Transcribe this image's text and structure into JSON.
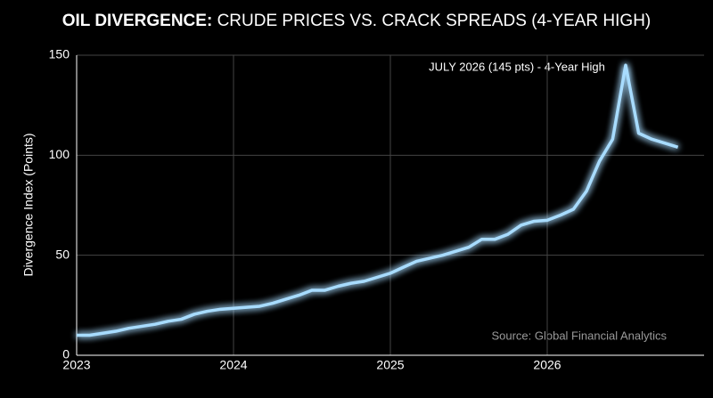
{
  "chart_data": {
    "type": "line",
    "title": [
      "OIL DIVERGENCE:",
      "CRUDE PRICES VS. CRACK SPREADS (4-YEAR HIGH)"
    ],
    "y_label": "Divergence Index (Points)",
    "annotation": "JULY 2026 (145 pts) - 4-Year High",
    "source": "Source: Global Financial Analytics",
    "x": [
      2023,
      2023.083,
      2023.167,
      2023.25,
      2023.333,
      2023.417,
      2023.5,
      2023.583,
      2023.667,
      2023.75,
      2023.833,
      2023.917,
      2024,
      2024.083,
      2024.167,
      2024.25,
      2024.333,
      2024.417,
      2024.5,
      2024.583,
      2024.667,
      2024.75,
      2024.833,
      2024.917,
      2025,
      2025.083,
      2025.167,
      2025.25,
      2025.333,
      2025.417,
      2025.5,
      2025.583,
      2025.667,
      2025.75,
      2025.833,
      2025.917,
      2026,
      2026.083,
      2026.167,
      2026.25,
      2026.333,
      2026.417,
      2026.5,
      2026.583,
      2026.667,
      2026.75,
      2026.833
    ],
    "series": [
      {
        "name": "Divergence Index",
        "color": "#a8dcff",
        "values": [
          10,
          10,
          11,
          12,
          13.5,
          14.5,
          15.5,
          17,
          18,
          20.5,
          22,
          23,
          23.5,
          24,
          24.5,
          26,
          28,
          30,
          32.5,
          32.5,
          34.5,
          36,
          37,
          39,
          41,
          44,
          47,
          48.5,
          50,
          52,
          54,
          58,
          58,
          60.5,
          65,
          67,
          67.5,
          70,
          73,
          82,
          97,
          108,
          145,
          111,
          108,
          106,
          104
        ]
      }
    ],
    "xlim": [
      2023,
      2027
    ],
    "xticks": [
      2023,
      2024,
      2025,
      2026
    ],
    "ylim": [
      0,
      150
    ],
    "yticks": [
      0,
      50,
      100,
      150
    ],
    "grid": true
  }
}
